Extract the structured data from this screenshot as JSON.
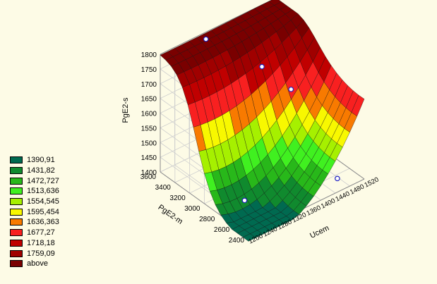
{
  "chart_data": {
    "type": "surface3d",
    "title": "",
    "zlabel": "PgE2-s",
    "xlabel": "Ucem",
    "ylabel": "PgE2-m",
    "x_ticks": [
      "1200",
      "1240",
      "1280",
      "1320",
      "1360",
      "1400",
      "1440",
      "1480",
      "1520"
    ],
    "y_ticks": [
      "2400",
      "2600",
      "2800",
      "3000",
      "3200",
      "3400",
      "3600"
    ],
    "z_ticks": [
      "1400",
      "1450",
      "1500",
      "1550",
      "1600",
      "1650",
      "1700",
      "1750",
      "1800"
    ],
    "xlim": [
      1200,
      1520
    ],
    "ylim": [
      2400,
      3600
    ],
    "zlim": [
      1400,
      1800
    ],
    "grid": true,
    "legend_position": "left",
    "legend": [
      {
        "label": "1390,91",
        "color": "#006a50"
      },
      {
        "label": "1431,82",
        "color": "#108a2e"
      },
      {
        "label": "1472,727",
        "color": "#28b81a"
      },
      {
        "label": "1513,636",
        "color": "#40f020"
      },
      {
        "label": "1554,545",
        "color": "#a6f000"
      },
      {
        "label": "1595,454",
        "color": "#f8f800"
      },
      {
        "label": "1636,363",
        "color": "#f87a00"
      },
      {
        "label": "1677,27",
        "color": "#f82020"
      },
      {
        "label": "1718,18",
        "color": "#c00000"
      },
      {
        "label": "1759,09",
        "color": "#a00000"
      },
      {
        "label": "above",
        "color": "#7a0000"
      }
    ],
    "contour_levels": [
      1390.91,
      1431.82,
      1472.727,
      1513.636,
      1554.545,
      1595.454,
      1636.363,
      1677.27,
      1718.18,
      1759.09
    ],
    "points": [
      {
        "x": 1310,
        "y": 3520,
        "z": 1800
      },
      {
        "x": 1420,
        "y": 3300,
        "z": 1680
      },
      {
        "x": 1470,
        "y": 3150,
        "z": 1600
      },
      {
        "x": 1240,
        "y": 2650,
        "z": 1450
      },
      {
        "x": 1470,
        "y": 2520,
        "z": 1410
      }
    ]
  }
}
